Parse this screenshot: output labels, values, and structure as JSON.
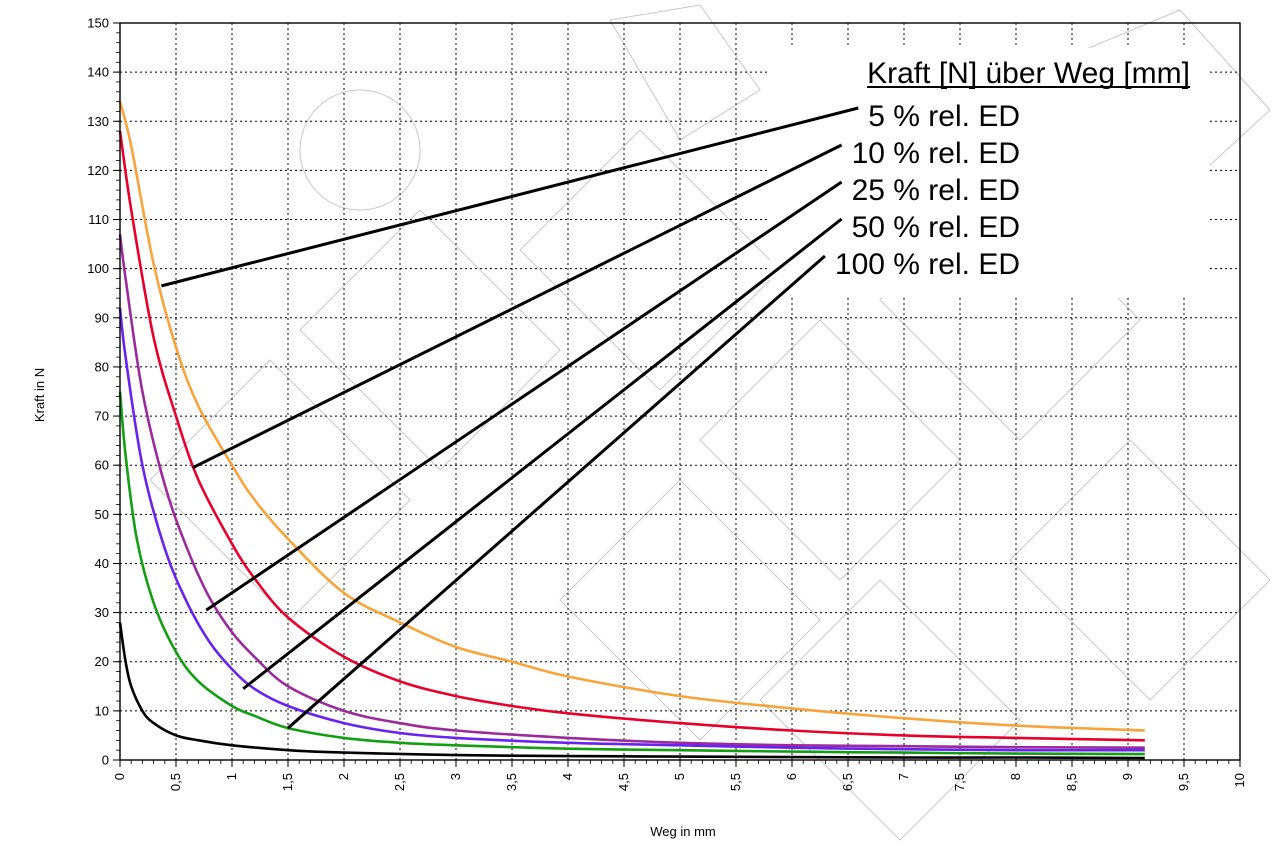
{
  "chart_data": {
    "type": "line",
    "title": "",
    "xlabel": "Weg in mm",
    "ylabel": "Kraft in N",
    "xlim": [
      0,
      10
    ],
    "ylim": [
      0,
      150
    ],
    "x_ticks": [
      "0",
      "0,5",
      "1",
      "1,5",
      "2",
      "2,5",
      "3",
      "3,5",
      "4",
      "4,5",
      "5",
      "5,5",
      "6",
      "6,5",
      "7",
      "7,5",
      "8",
      "8,5",
      "9",
      "9,5",
      "10"
    ],
    "y_ticks": [
      "0",
      "10",
      "20",
      "30",
      "40",
      "50",
      "60",
      "70",
      "80",
      "90",
      "100",
      "110",
      "120",
      "130",
      "140",
      "150"
    ],
    "grid": true,
    "legend_title": "Kraft [N] über Weg [mm]",
    "legend_placement": "top-right",
    "series": [
      {
        "name": "5 % rel. ED",
        "color": "#f7a43a",
        "x": [
          0,
          0.1,
          0.3,
          0.5,
          0.7,
          1.0,
          1.2,
          1.5,
          2.0,
          2.5,
          3.0,
          3.5,
          4.0,
          5.0,
          6.0,
          7.0,
          8.0,
          9.15
        ],
        "y": [
          134,
          125,
          101,
          84,
          72,
          60,
          53,
          45,
          34,
          28,
          23,
          20,
          17,
          13,
          10.5,
          8.5,
          7,
          6
        ]
      },
      {
        "name": "10 % rel. ED",
        "color": "#e8002a",
        "x": [
          0,
          0.1,
          0.3,
          0.5,
          0.7,
          1.0,
          1.2,
          1.5,
          2.0,
          2.5,
          3.0,
          3.5,
          4.0,
          5.0,
          6.0,
          7.0,
          8.0,
          9.15
        ],
        "y": [
          128,
          112,
          86,
          70,
          57,
          44,
          37,
          29,
          21,
          16,
          13,
          11,
          9.5,
          7.5,
          6,
          5,
          4.5,
          4
        ]
      },
      {
        "name": "25 % rel. ED",
        "color": "#9b2a9b",
        "x": [
          0,
          0.05,
          0.2,
          0.4,
          0.6,
          0.8,
          1.0,
          1.2,
          1.5,
          2.0,
          2.5,
          3.0,
          4.0,
          5.0,
          6.0,
          7.0,
          8.0,
          9.15
        ],
        "y": [
          107,
          98,
          75,
          56,
          43,
          33,
          26,
          21,
          15,
          10,
          7.5,
          6,
          4.5,
          3.5,
          3,
          2.8,
          2.6,
          2.5
        ]
      },
      {
        "name": "50 % rel. ED",
        "color": "#6a22f0",
        "x": [
          0,
          0.05,
          0.2,
          0.4,
          0.6,
          0.8,
          1.0,
          1.2,
          1.5,
          2.0,
          2.5,
          3.0,
          4.0,
          5.0,
          6.0,
          7.0,
          8.0,
          9.15
        ],
        "y": [
          92,
          82,
          60,
          43,
          32,
          24,
          18.5,
          14.5,
          11,
          7.5,
          5.5,
          4.5,
          3.5,
          3,
          2.5,
          2.2,
          2,
          2
        ]
      },
      {
        "name": "100 % rel. ED",
        "color": "#12a012",
        "x": [
          0,
          0.05,
          0.15,
          0.3,
          0.5,
          0.7,
          1.0,
          1.2,
          1.5,
          2.0,
          2.5,
          3.0,
          4.0,
          5.0,
          6.0,
          7.0,
          8.0,
          9.15
        ],
        "y": [
          75,
          62,
          45,
          32,
          22,
          16,
          11,
          9,
          6.5,
          4.5,
          3.5,
          3,
          2.3,
          2,
          1.7,
          1.5,
          1.3,
          1.2
        ]
      },
      {
        "name": "",
        "color": "#000000",
        "x": [
          0,
          0.05,
          0.1,
          0.2,
          0.3,
          0.5,
          0.7,
          1.0,
          1.5,
          2.0,
          3.0,
          4.0,
          5.0,
          6.0,
          7.0,
          8.0,
          9.15
        ],
        "y": [
          28,
          20,
          15,
          10,
          7.5,
          5,
          4,
          3,
          2,
          1.5,
          1,
          0.8,
          0.7,
          0.6,
          0.5,
          0.5,
          0.4
        ]
      }
    ],
    "callouts": [
      {
        "label": "5 % rel. ED",
        "target_x": 0.37,
        "target_y": 96.5
      },
      {
        "label": "10 % rel. ED",
        "target_x": 0.65,
        "target_y": 59.5
      },
      {
        "label": "25 % rel. ED",
        "target_x": 0.77,
        "target_y": 30.5
      },
      {
        "label": "50 % rel. ED",
        "target_x": 1.1,
        "target_y": 14.5
      },
      {
        "label": "100 % rel. ED",
        "target_x": 1.5,
        "target_y": 6.5
      }
    ]
  }
}
